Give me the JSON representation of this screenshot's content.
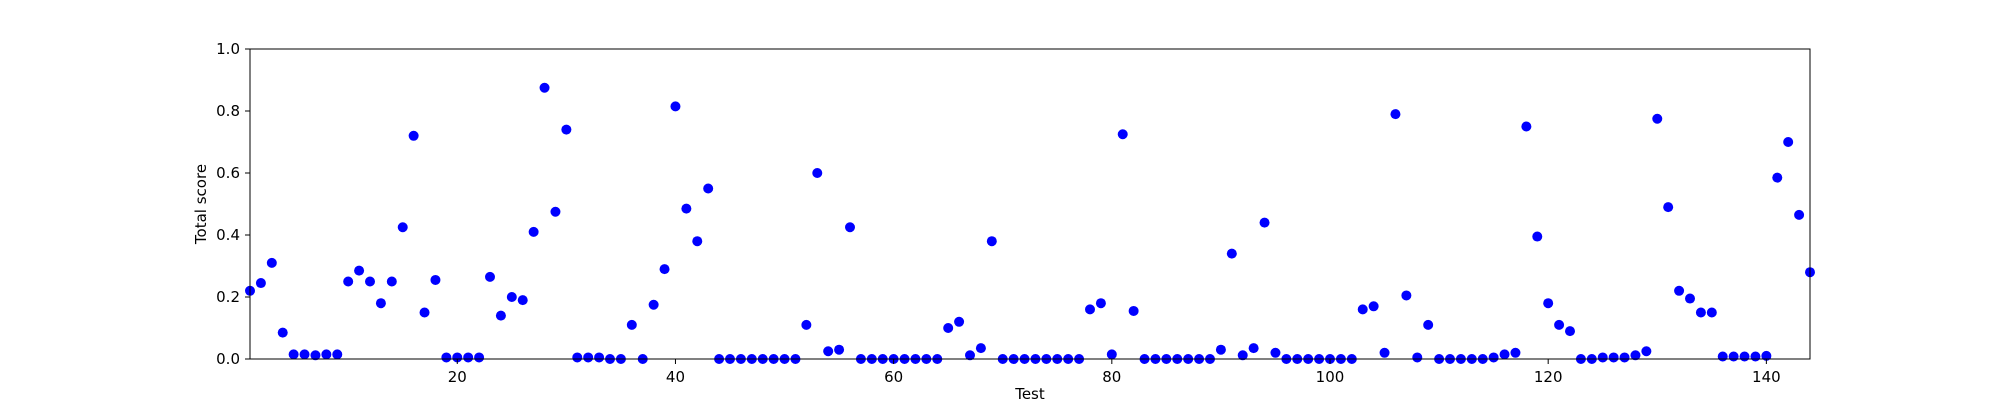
{
  "chart_data": {
    "type": "scatter",
    "xlabel": "Test",
    "ylabel": "Total score",
    "xlim": [
      1,
      144
    ],
    "ylim": [
      0,
      1.0
    ],
    "xticks": [
      20,
      40,
      60,
      80,
      100,
      120,
      140
    ],
    "yticks": [
      0.0,
      0.2,
      0.4,
      0.6,
      0.8,
      1.0
    ],
    "ytick_labels": [
      "0.0",
      "0.2",
      "0.4",
      "0.6",
      "0.8",
      "1.0"
    ],
    "grid": false,
    "marker_color": "#0000ff",
    "series": [
      {
        "points": [
          [
            1,
            0.22
          ],
          [
            2,
            0.245
          ],
          [
            3,
            0.31
          ],
          [
            4,
            0.085
          ],
          [
            5,
            0.015
          ],
          [
            6,
            0.015
          ],
          [
            7,
            0.012
          ],
          [
            8,
            0.015
          ],
          [
            9,
            0.015
          ],
          [
            10,
            0.25
          ],
          [
            11,
            0.285
          ],
          [
            12,
            0.25
          ],
          [
            13,
            0.18
          ],
          [
            14,
            0.25
          ],
          [
            15,
            0.425
          ],
          [
            16,
            0.72
          ],
          [
            17,
            0.15
          ],
          [
            18,
            0.255
          ],
          [
            19,
            0.005
          ],
          [
            20,
            0.005
          ],
          [
            21,
            0.005
          ],
          [
            22,
            0.005
          ],
          [
            23,
            0.265
          ],
          [
            24,
            0.14
          ],
          [
            25,
            0.2
          ],
          [
            26,
            0.19
          ],
          [
            27,
            0.41
          ],
          [
            28,
            0.875
          ],
          [
            29,
            0.475
          ],
          [
            30,
            0.74
          ],
          [
            31,
            0.005
          ],
          [
            32,
            0.005
          ],
          [
            33,
            0.005
          ],
          [
            34,
            0.0
          ],
          [
            35,
            0.0
          ],
          [
            36,
            0.11
          ],
          [
            37,
            0.0
          ],
          [
            38,
            0.175
          ],
          [
            39,
            0.29
          ],
          [
            40,
            0.815
          ],
          [
            41,
            0.485
          ],
          [
            42,
            0.38
          ],
          [
            43,
            0.55
          ],
          [
            44,
            0.0
          ],
          [
            45,
            0.0
          ],
          [
            46,
            0.0
          ],
          [
            47,
            0.0
          ],
          [
            48,
            0.0
          ],
          [
            49,
            0.0
          ],
          [
            50,
            0.0
          ],
          [
            51,
            0.0
          ],
          [
            52,
            0.11
          ],
          [
            53,
            0.6
          ],
          [
            54,
            0.025
          ],
          [
            55,
            0.03
          ],
          [
            56,
            0.425
          ],
          [
            57,
            0.0
          ],
          [
            58,
            0.0
          ],
          [
            59,
            0.0
          ],
          [
            60,
            0.0
          ],
          [
            61,
            0.0
          ],
          [
            62,
            0.0
          ],
          [
            63,
            0.0
          ],
          [
            64,
            0.0
          ],
          [
            65,
            0.1
          ],
          [
            66,
            0.12
          ],
          [
            67,
            0.012
          ],
          [
            68,
            0.035
          ],
          [
            69,
            0.38
          ],
          [
            70,
            0.0
          ],
          [
            71,
            0.0
          ],
          [
            72,
            0.0
          ],
          [
            73,
            0.0
          ],
          [
            74,
            0.0
          ],
          [
            75,
            0.0
          ],
          [
            76,
            0.0
          ],
          [
            77,
            0.0
          ],
          [
            78,
            0.16
          ],
          [
            79,
            0.18
          ],
          [
            80,
            0.015
          ],
          [
            81,
            0.725
          ],
          [
            82,
            0.155
          ],
          [
            83,
            0.0
          ],
          [
            84,
            0.0
          ],
          [
            85,
            0.0
          ],
          [
            86,
            0.0
          ],
          [
            87,
            0.0
          ],
          [
            88,
            0.0
          ],
          [
            89,
            0.0
          ],
          [
            90,
            0.03
          ],
          [
            91,
            0.34
          ],
          [
            92,
            0.012
          ],
          [
            93,
            0.035
          ],
          [
            94,
            0.44
          ],
          [
            95,
            0.02
          ],
          [
            96,
            0.0
          ],
          [
            97,
            0.0
          ],
          [
            98,
            0.0
          ],
          [
            99,
            0.0
          ],
          [
            100,
            0.0
          ],
          [
            101,
            0.0
          ],
          [
            102,
            0.0
          ],
          [
            103,
            0.16
          ],
          [
            104,
            0.17
          ],
          [
            105,
            0.02
          ],
          [
            106,
            0.79
          ],
          [
            107,
            0.205
          ],
          [
            108,
            0.005
          ],
          [
            109,
            0.11
          ],
          [
            110,
            0.0
          ],
          [
            111,
            0.0
          ],
          [
            112,
            0.0
          ],
          [
            113,
            0.0
          ],
          [
            114,
            0.0
          ],
          [
            115,
            0.005
          ],
          [
            116,
            0.015
          ],
          [
            117,
            0.02
          ],
          [
            118,
            0.75
          ],
          [
            119,
            0.395
          ],
          [
            120,
            0.18
          ],
          [
            121,
            0.11
          ],
          [
            122,
            0.09
          ],
          [
            123,
            0.0
          ],
          [
            124,
            0.0
          ],
          [
            125,
            0.005
          ],
          [
            126,
            0.005
          ],
          [
            127,
            0.005
          ],
          [
            128,
            0.012
          ],
          [
            129,
            0.025
          ],
          [
            130,
            0.775
          ],
          [
            131,
            0.49
          ],
          [
            132,
            0.22
          ],
          [
            133,
            0.195
          ],
          [
            134,
            0.15
          ],
          [
            135,
            0.15
          ],
          [
            136,
            0.008
          ],
          [
            137,
            0.008
          ],
          [
            138,
            0.008
          ],
          [
            139,
            0.008
          ],
          [
            140,
            0.01
          ],
          [
            141,
            0.585
          ],
          [
            142,
            0.7
          ],
          [
            143,
            0.465
          ],
          [
            144,
            0.28
          ]
        ]
      }
    ]
  }
}
